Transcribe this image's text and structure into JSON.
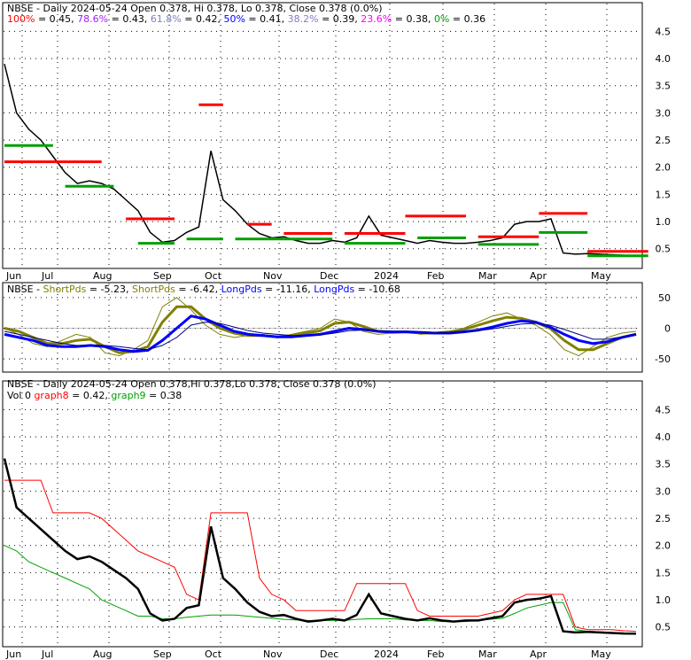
{
  "colors": {
    "price": "#000000",
    "resist": "#ff0000",
    "support": "#00a000",
    "fib_pct_100": "#ff0000",
    "fib_pct_786": "#a020f0",
    "fib_pct_618": "#8080c0",
    "fib_pct_50": "#0000ff",
    "fib_pct_382": "#8080c0",
    "fib_pct_236": "#ff00ff",
    "fib_pct_0": "#00a000",
    "short_fast": "#808000",
    "short_slow": "#808000",
    "long_fast": "#0000ff",
    "long_slow": "#000080",
    "graph8": "#ff0000",
    "graph9": "#00a000"
  },
  "panel1": {
    "ticker": "NBSE",
    "title_rest": " - Daily 2024-05-24 Open 0.378, Hi 0.378, Lo 0.378, Close 0.378 (0.0%)",
    "fib": [
      {
        "pct": "100%",
        "val": " = 0.45, "
      },
      {
        "pct": "78.6%",
        "val": " = 0.43, "
      },
      {
        "pct": "61.8%",
        "val": " = 0.42, "
      },
      {
        "pct": "50%",
        "val": " = 0.41, "
      },
      {
        "pct": "38.2%",
        "val": " = 0.39, "
      },
      {
        "pct": "23.6%",
        "val": " = 0.38, "
      },
      {
        "pct": "0%",
        "val": " = 0.36"
      }
    ]
  },
  "panel2": {
    "ticker": "NBSE",
    "items": [
      {
        "name": "ShortPds",
        "val": " = -5.23, "
      },
      {
        "name": "ShortPds",
        "val": " = -6.42, "
      },
      {
        "name": "LongPds",
        "val": " = -11.16, "
      },
      {
        "name": "LongPds",
        "val": " = -10.68"
      }
    ]
  },
  "panel3": {
    "title": "NBSE - Daily 2024-05-24 Open 0.378,Hi 0.378,Lo 0.378, Close 0.378 (0.0%)",
    "vol_label": "Vol 0",
    "graph8_name": "graph8",
    "graph8_val": " = 0.42, ",
    "graph9_name": "graph9",
    "graph9_val": " = 0.38"
  },
  "chart_data": [
    {
      "type": "line",
      "x_labels": [
        "Jun",
        "Jul",
        "Aug",
        "Sep",
        "Oct",
        "Nov",
        "Dec",
        "2024",
        "Feb",
        "Mar",
        "Apr",
        "May"
      ],
      "y_ticks": [
        "4.5",
        "4.0",
        "3.5",
        "3.0",
        "2.5",
        "2.0",
        "1.5",
        "1.0",
        "0.5"
      ],
      "ylim": [
        0.3,
        4.8
      ],
      "close": [
        3.9,
        3.0,
        2.7,
        2.5,
        2.2,
        1.9,
        1.7,
        1.75,
        1.7,
        1.6,
        1.4,
        1.2,
        0.8,
        0.62,
        0.65,
        0.8,
        0.9,
        2.3,
        1.4,
        1.2,
        0.95,
        0.78,
        0.7,
        0.72,
        0.65,
        0.6,
        0.6,
        0.65,
        0.62,
        0.7,
        1.1,
        0.75,
        0.7,
        0.65,
        0.6,
        0.65,
        0.62,
        0.6,
        0.6,
        0.62,
        0.65,
        0.7,
        0.95,
        1.0,
        1.0,
        1.05,
        0.42,
        0.4,
        0.41,
        0.4,
        0.39,
        0.38,
        0.378
      ],
      "resistance": [
        {
          "from": 0,
          "to": 8,
          "value": 2.1
        },
        {
          "from": 10,
          "to": 14,
          "value": 1.05
        },
        {
          "from": 16,
          "to": 18,
          "value": 3.15
        },
        {
          "from": 20,
          "to": 22,
          "value": 0.95
        },
        {
          "from": 23,
          "to": 27,
          "value": 0.78
        },
        {
          "from": 28,
          "to": 33,
          "value": 0.78
        },
        {
          "from": 33,
          "to": 38,
          "value": 1.1
        },
        {
          "from": 39,
          "to": 44,
          "value": 0.72
        },
        {
          "from": 44,
          "to": 48,
          "value": 1.15
        },
        {
          "from": 48,
          "to": 53,
          "value": 0.45
        }
      ],
      "support": [
        {
          "from": 0,
          "to": 4,
          "value": 2.4
        },
        {
          "from": 5,
          "to": 9,
          "value": 1.65
        },
        {
          "from": 11,
          "to": 14,
          "value": 0.6
        },
        {
          "from": 15,
          "to": 18,
          "value": 0.68
        },
        {
          "from": 19,
          "to": 27,
          "value": 0.68
        },
        {
          "from": 28,
          "to": 33,
          "value": 0.6
        },
        {
          "from": 34,
          "to": 38,
          "value": 0.7
        },
        {
          "from": 39,
          "to": 44,
          "value": 0.58
        },
        {
          "from": 44,
          "to": 48,
          "value": 0.8
        },
        {
          "from": 48,
          "to": 53,
          "value": 0.37
        }
      ]
    },
    {
      "type": "line",
      "x_labels": [
        "Jun",
        "Jul",
        "Aug",
        "Sep",
        "Oct",
        "Nov",
        "Dec",
        "2024",
        "Feb",
        "Mar",
        "Apr",
        "May"
      ],
      "y_ticks": [
        "50",
        "0",
        "-50"
      ],
      "ylim": [
        -60,
        60
      ],
      "series": [
        {
          "values": [
            0,
            -10,
            -25,
            -30,
            -20,
            -10,
            -15,
            -40,
            -45,
            -35,
            -20,
            35,
            50,
            30,
            5,
            -10,
            -15,
            -12,
            -10,
            -15,
            -10,
            -5,
            0,
            15,
            10,
            -5,
            -10,
            -8,
            -5,
            -10,
            -8,
            -5,
            0,
            10,
            20,
            25,
            15,
            5,
            -10,
            -35,
            -45,
            -30,
            -15,
            -8,
            -5
          ]
        },
        {
          "values": [
            0,
            -5,
            -15,
            -25,
            -25,
            -20,
            -18,
            -30,
            -40,
            -38,
            -30,
            10,
            35,
            35,
            15,
            0,
            -8,
            -12,
            -12,
            -14,
            -12,
            -8,
            -4,
            8,
            10,
            3,
            -5,
            -7,
            -6,
            -8,
            -8,
            -6,
            -2,
            5,
            12,
            18,
            16,
            10,
            0,
            -20,
            -35,
            -35,
            -25,
            -15,
            -10
          ]
        },
        {
          "values": [
            -10,
            -15,
            -20,
            -28,
            -30,
            -30,
            -28,
            -30,
            -35,
            -38,
            -36,
            -20,
            0,
            20,
            15,
            5,
            -5,
            -10,
            -12,
            -14,
            -14,
            -12,
            -10,
            -5,
            0,
            -2,
            -5,
            -6,
            -6,
            -7,
            -8,
            -8,
            -6,
            -3,
            2,
            8,
            12,
            10,
            2,
            -10,
            -20,
            -25,
            -22,
            -15,
            -10
          ]
        },
        {
          "values": [
            -5,
            -10,
            -15,
            -20,
            -25,
            -28,
            -28,
            -28,
            -30,
            -33,
            -35,
            -28,
            -15,
            5,
            10,
            8,
            2,
            -4,
            -8,
            -10,
            -12,
            -12,
            -11,
            -8,
            -4,
            -3,
            -4,
            -5,
            -5,
            -6,
            -7,
            -7,
            -6,
            -4,
            -1,
            3,
            7,
            8,
            5,
            -2,
            -10,
            -18,
            -18,
            -14,
            -10
          ]
        }
      ]
    },
    {
      "type": "line",
      "x_labels": [
        "Jun",
        "Jul",
        "Aug",
        "Sep",
        "Oct",
        "Nov",
        "Dec",
        "2024",
        "Feb",
        "Mar",
        "Apr",
        "May"
      ],
      "y_ticks": [
        "4.5",
        "4.0",
        "3.5",
        "3.0",
        "2.5",
        "2.0",
        "1.5",
        "1.0",
        "0.5"
      ],
      "ylim": [
        0.3,
        4.8
      ],
      "close": [
        3.6,
        2.7,
        2.5,
        2.3,
        2.1,
        1.9,
        1.75,
        1.8,
        1.7,
        1.55,
        1.4,
        1.2,
        0.75,
        0.62,
        0.65,
        0.85,
        0.9,
        2.35,
        1.4,
        1.2,
        0.95,
        0.78,
        0.7,
        0.72,
        0.65,
        0.6,
        0.62,
        0.65,
        0.62,
        0.72,
        1.1,
        0.75,
        0.7,
        0.65,
        0.62,
        0.66,
        0.62,
        0.6,
        0.62,
        0.62,
        0.66,
        0.7,
        0.95,
        1.0,
        1.02,
        1.07,
        0.42,
        0.4,
        0.41,
        0.4,
        0.39,
        0.38,
        0.378
      ],
      "graph8": [
        3.2,
        3.2,
        3.2,
        3.2,
        2.6,
        2.6,
        2.6,
        2.6,
        2.5,
        2.3,
        2.1,
        1.9,
        1.8,
        1.7,
        1.6,
        1.1,
        1.0,
        2.6,
        2.6,
        2.6,
        2.6,
        1.4,
        1.1,
        1.0,
        0.8,
        0.8,
        0.8,
        0.8,
        0.8,
        1.3,
        1.3,
        1.3,
        1.3,
        1.3,
        0.8,
        0.7,
        0.7,
        0.7,
        0.7,
        0.7,
        0.75,
        0.8,
        1.0,
        1.1,
        1.1,
        1.1,
        1.1,
        0.5,
        0.45,
        0.45,
        0.45,
        0.43,
        0.42
      ],
      "graph9": [
        2.0,
        1.9,
        1.7,
        1.6,
        1.5,
        1.4,
        1.3,
        1.2,
        1.0,
        0.9,
        0.8,
        0.7,
        0.7,
        0.65,
        0.65,
        0.68,
        0.7,
        0.72,
        0.72,
        0.72,
        0.7,
        0.68,
        0.66,
        0.64,
        0.63,
        0.62,
        0.62,
        0.62,
        0.62,
        0.64,
        0.65,
        0.65,
        0.65,
        0.63,
        0.62,
        0.62,
        0.6,
        0.6,
        0.6,
        0.62,
        0.64,
        0.66,
        0.75,
        0.85,
        0.9,
        0.95,
        0.95,
        0.45,
        0.42,
        0.41,
        0.4,
        0.39,
        0.38
      ]
    }
  ]
}
